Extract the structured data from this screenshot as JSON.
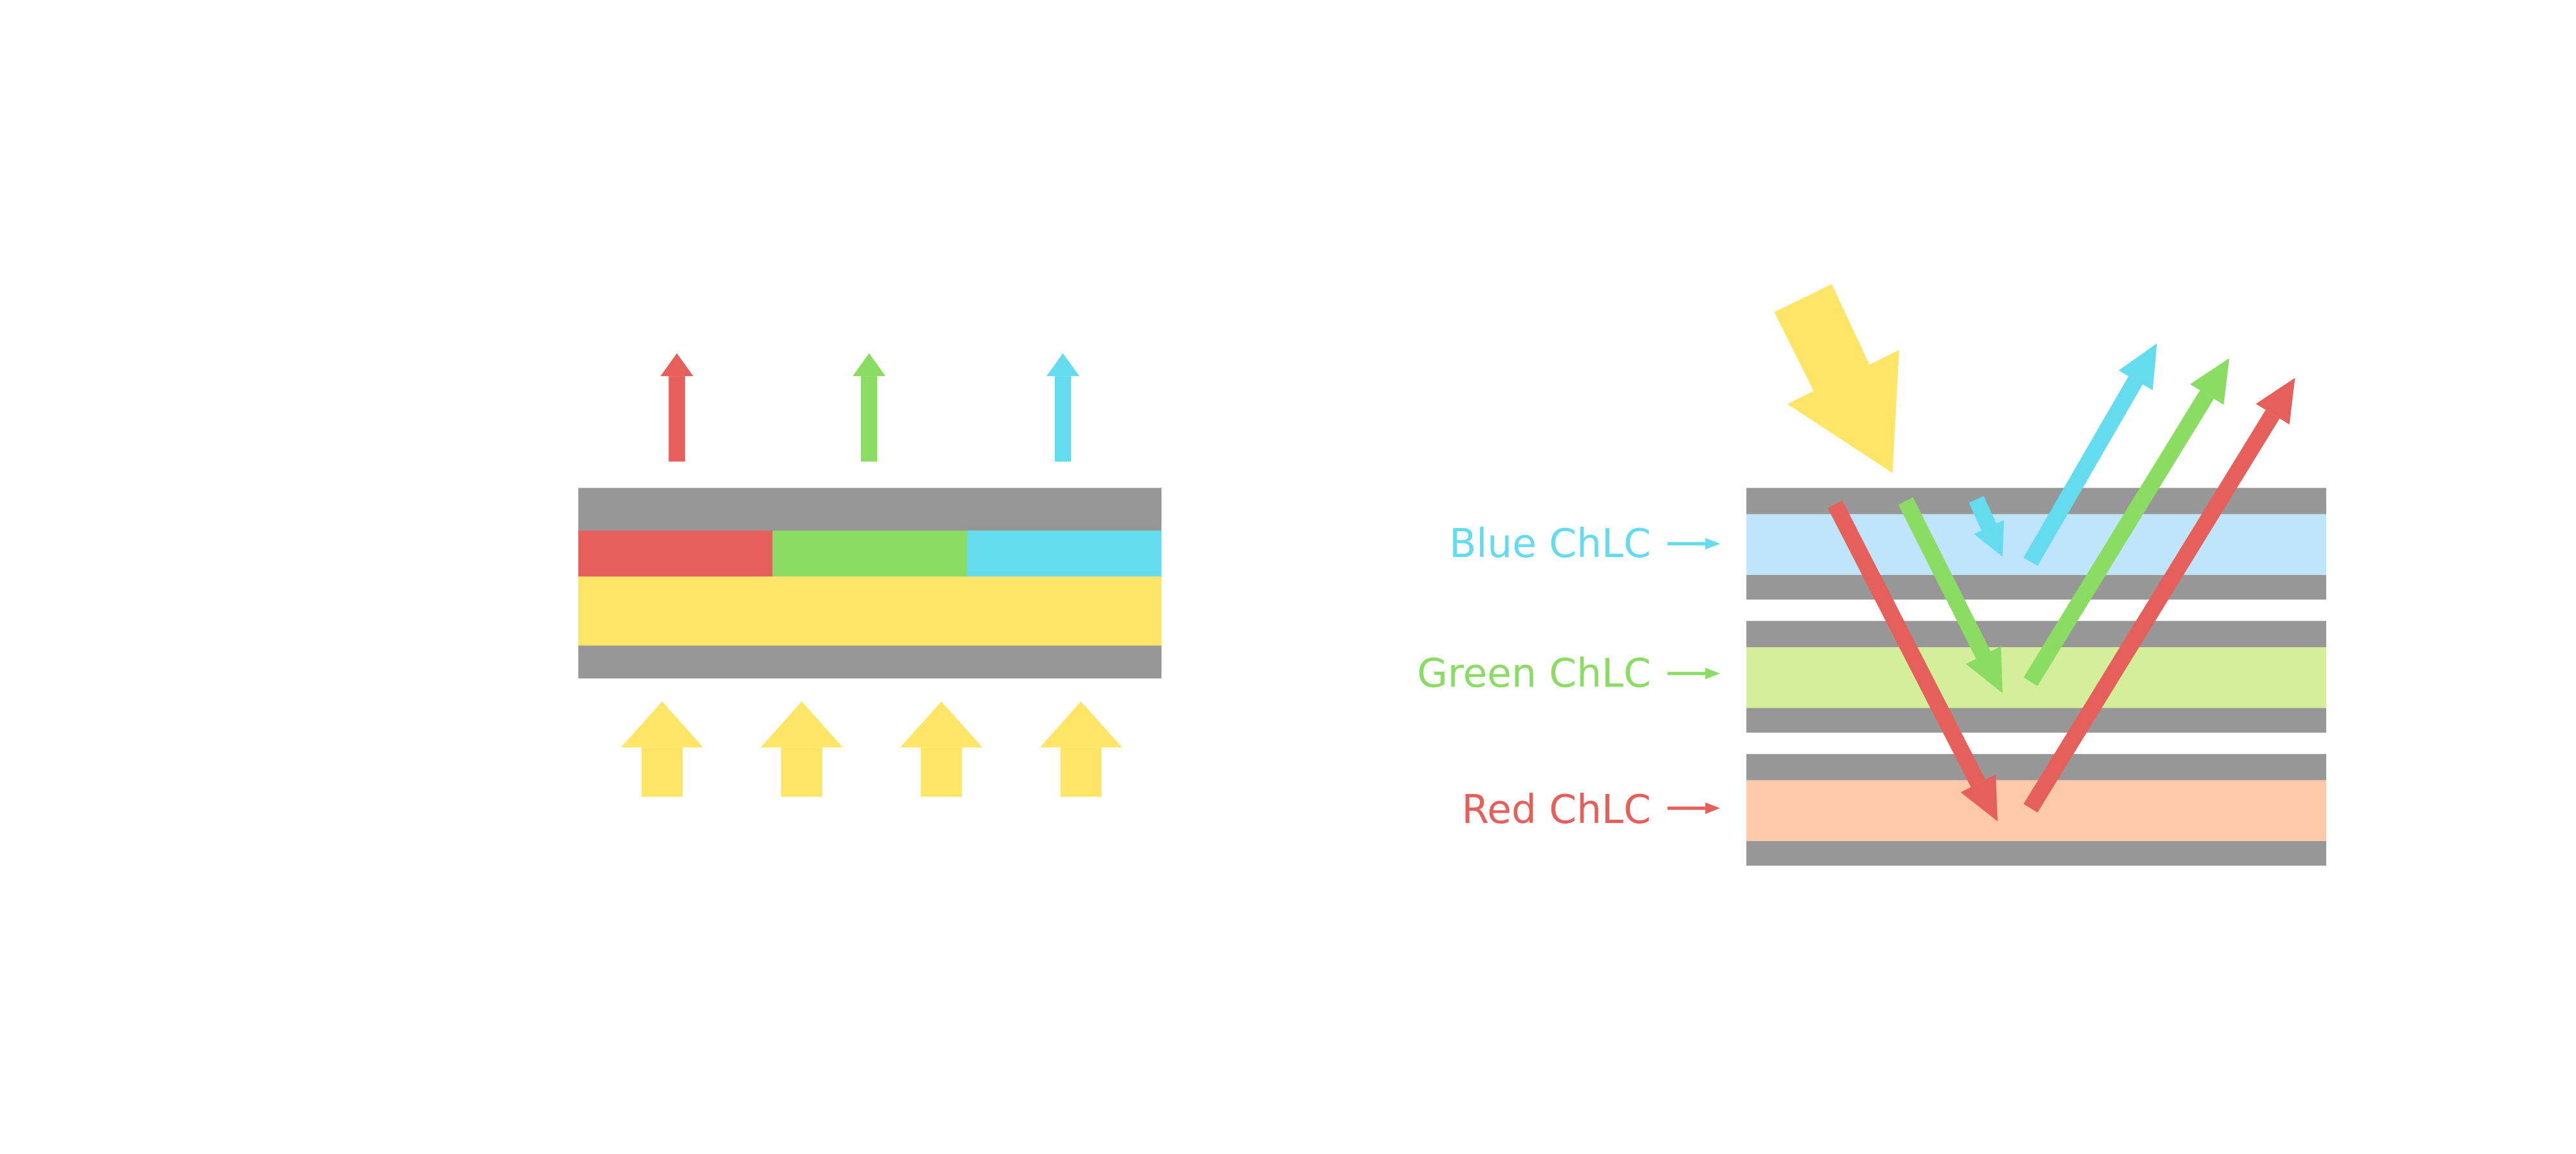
{
  "colors": {
    "red": "#e5605a",
    "green": "#8adc63",
    "blue": "#64dbee",
    "yellow": "#fee566",
    "gray": "#979797",
    "blue_layer": "#bee5fc",
    "green_layer": "#d3ef9a",
    "red_layer": "#fdc9a9"
  },
  "right_diagram": {
    "labels": [
      {
        "text": "Blue ChLC",
        "color": "#64dbee"
      },
      {
        "text": "Green ChLC",
        "color": "#8adc63"
      },
      {
        "text": "Red ChLC",
        "color": "#e5605a"
      }
    ]
  }
}
